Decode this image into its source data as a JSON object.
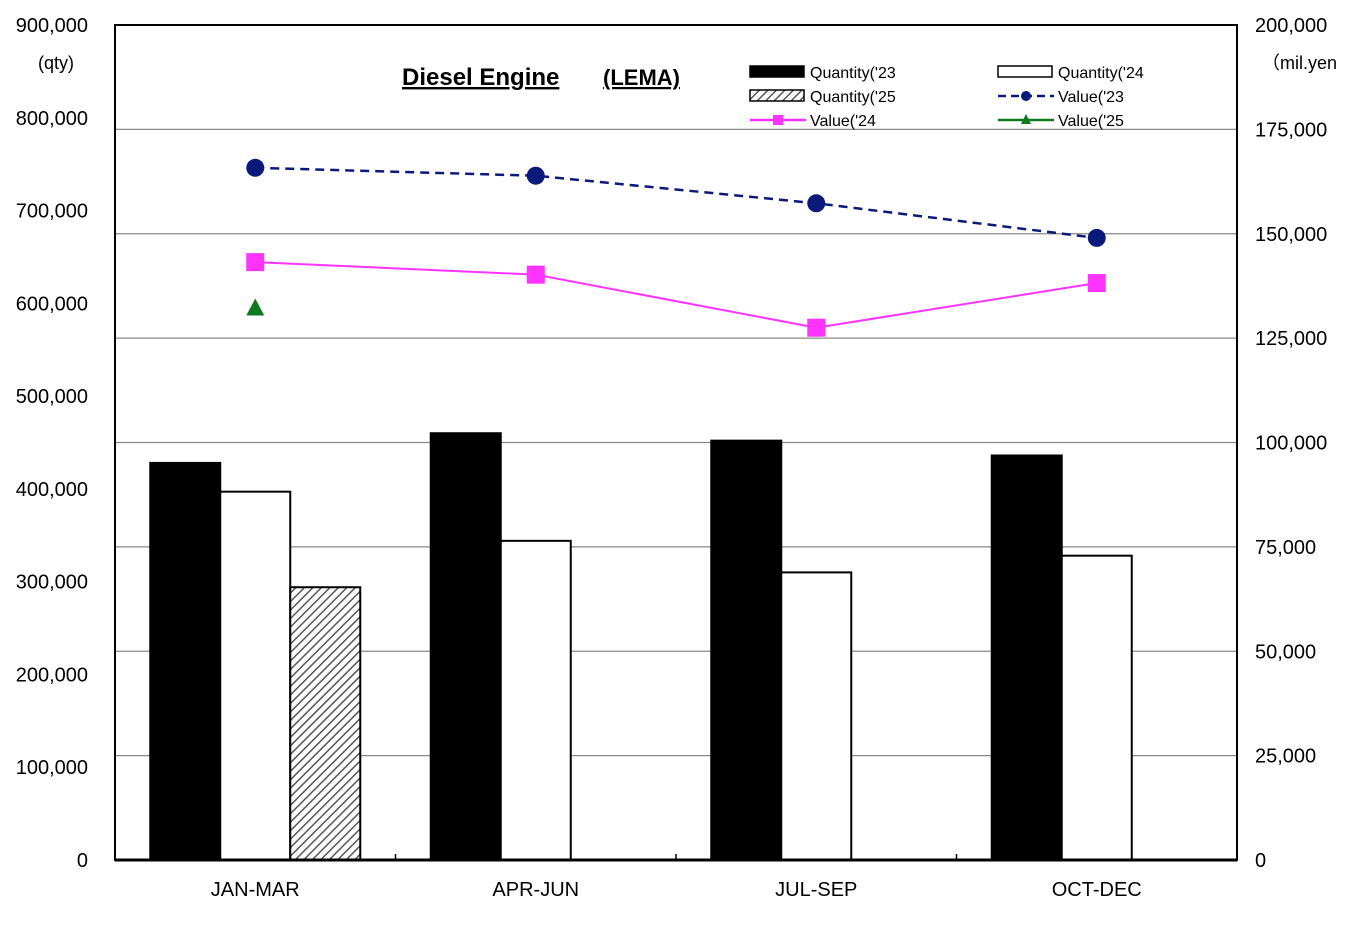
{
  "chart_data": {
    "type": "bar",
    "title": "Diesel Engine",
    "title_suffix": "(LEMA)",
    "categories": [
      "JAN-MAR",
      "APR-JUN",
      "JUL-SEP",
      "OCT-DEC"
    ],
    "left_axis": {
      "unit_label": "(qty)",
      "range": [
        0,
        900000
      ],
      "ticks": [
        "0",
        "100,000",
        "200,000",
        "300,000",
        "400,000",
        "500,000",
        "600,000",
        "700,000",
        "800,000",
        "900,000"
      ]
    },
    "right_axis": {
      "unit_label": "（mil.yen",
      "range": [
        0,
        200000
      ],
      "ticks": [
        "0",
        "25,000",
        "50,000",
        "75,000",
        "100,000",
        "125,000",
        "150,000",
        "175,000",
        "200,000"
      ]
    },
    "grid": true,
    "legend_position": "top-right",
    "bar_series": [
      {
        "name": "Quantity('23",
        "style": "solid",
        "color": "#000000",
        "values": [
          428000,
          460000,
          452000,
          436000
        ]
      },
      {
        "name": "Quantity('24",
        "style": "outline",
        "color": "#ffffff",
        "values": [
          397000,
          344000,
          310000,
          328000
        ]
      },
      {
        "name": "Quantity('25",
        "style": "hatched",
        "color": "#888888",
        "values": [
          294000,
          null,
          null,
          null
        ]
      }
    ],
    "line_series": [
      {
        "name": "Value('23",
        "axis": "right",
        "color": "#0a1a7a",
        "dash": true,
        "marker": "circle",
        "values": [
          165800,
          163900,
          157300,
          149000
        ]
      },
      {
        "name": "Value('24",
        "axis": "right",
        "color": "#ff33ff",
        "dash": false,
        "marker": "square",
        "values": [
          143200,
          140200,
          127500,
          138200
        ]
      },
      {
        "name": "Value('25",
        "axis": "right",
        "color": "#0f7a1f",
        "dash": false,
        "marker": "triangle",
        "values": [
          132100,
          null,
          null,
          null
        ]
      }
    ]
  }
}
